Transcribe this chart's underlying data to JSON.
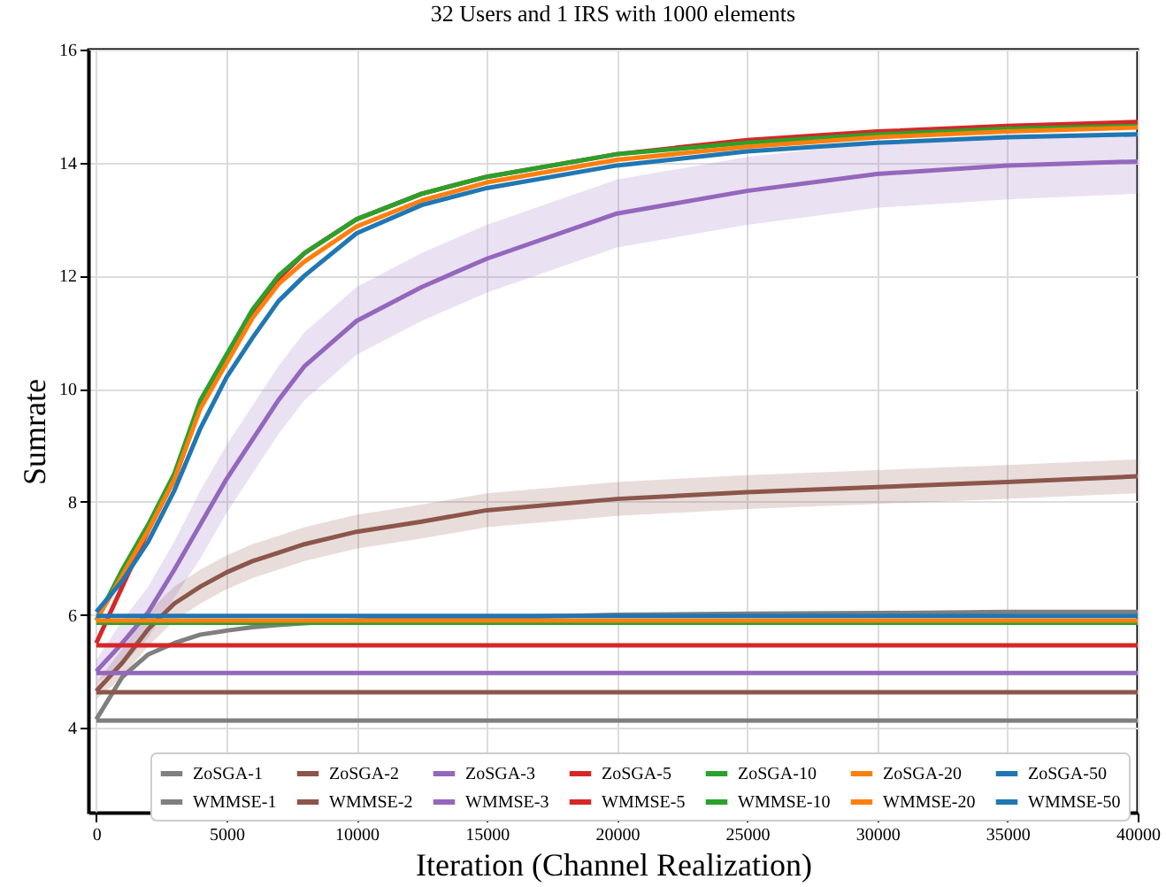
{
  "chart_data": {
    "type": "line",
    "title": "32 Users and 1 IRS with 1000 elements",
    "xlabel": "Iteration (Channel Realization)",
    "ylabel": "Sumrate",
    "x": [
      0,
      1000,
      2000,
      3000,
      4000,
      5000,
      6000,
      7000,
      8000,
      10000,
      12500,
      15000,
      20000,
      25000,
      30000,
      35000,
      40000
    ],
    "xlim": [
      -300,
      40000
    ],
    "xticks": [
      0,
      5000,
      10000,
      15000,
      20000,
      25000,
      30000,
      35000,
      40000
    ],
    "ylim": [
      2.5,
      16
    ],
    "yticks": [
      4,
      6,
      8,
      10,
      12,
      14,
      16
    ],
    "grid": true,
    "legend": "bottom",
    "series": [
      {
        "name": "ZoSGA-1",
        "color": "#7f7f7f",
        "values": [
          4.15,
          4.9,
          5.3,
          5.5,
          5.65,
          5.72,
          5.78,
          5.82,
          5.85,
          5.9,
          5.93,
          5.95,
          6.0,
          6.02,
          6.03,
          6.05,
          6.05
        ]
      },
      {
        "name": "ZoSGA-2",
        "color": "#8c564b",
        "values": [
          4.65,
          5.15,
          5.75,
          6.2,
          6.5,
          6.75,
          6.95,
          7.1,
          7.25,
          7.47,
          7.65,
          7.85,
          8.05,
          8.17,
          8.26,
          8.35,
          8.45
        ],
        "lower": [
          4.5,
          4.9,
          5.45,
          5.9,
          6.2,
          6.45,
          6.65,
          6.8,
          6.95,
          7.17,
          7.35,
          7.55,
          7.75,
          7.87,
          7.96,
          8.05,
          8.15
        ],
        "upper": [
          4.8,
          5.4,
          6.05,
          6.5,
          6.8,
          7.05,
          7.25,
          7.4,
          7.55,
          7.77,
          7.95,
          8.15,
          8.35,
          8.47,
          8.56,
          8.65,
          8.75
        ]
      },
      {
        "name": "ZoSGA-3",
        "color": "#9467bd",
        "values": [
          5.0,
          5.5,
          6.05,
          6.8,
          7.6,
          8.4,
          9.1,
          9.8,
          10.4,
          11.2,
          11.8,
          12.3,
          13.1,
          13.5,
          13.8,
          13.95,
          14.02
        ],
        "lower": [
          4.8,
          5.1,
          5.6,
          6.3,
          7.0,
          7.8,
          8.5,
          9.2,
          9.8,
          10.6,
          11.2,
          11.7,
          12.5,
          12.9,
          13.2,
          13.35,
          13.45
        ],
        "upper": [
          5.2,
          5.9,
          6.5,
          7.3,
          8.2,
          9.0,
          9.7,
          10.4,
          11.0,
          11.8,
          12.4,
          12.9,
          13.7,
          14.1,
          14.35,
          14.5,
          14.55
        ]
      },
      {
        "name": "ZoSGA-5",
        "color": "#d62728",
        "values": [
          5.5,
          6.5,
          7.5,
          8.4,
          9.7,
          10.55,
          11.35,
          11.95,
          12.4,
          13.0,
          13.45,
          13.75,
          14.15,
          14.4,
          14.55,
          14.65,
          14.72
        ]
      },
      {
        "name": "ZoSGA-10",
        "color": "#2ca02c",
        "values": [
          5.9,
          6.8,
          7.6,
          8.5,
          9.8,
          10.6,
          11.4,
          12.0,
          12.4,
          13.0,
          13.45,
          13.75,
          14.15,
          14.35,
          14.5,
          14.6,
          14.65
        ]
      },
      {
        "name": "ZoSGA-20",
        "color": "#ff7f0e",
        "values": [
          5.9,
          6.7,
          7.5,
          8.4,
          9.65,
          10.45,
          11.25,
          11.85,
          12.25,
          12.87,
          13.33,
          13.65,
          14.05,
          14.28,
          14.45,
          14.55,
          14.62
        ]
      },
      {
        "name": "ZoSGA-50",
        "color": "#1f77b4",
        "values": [
          6.05,
          6.6,
          7.3,
          8.2,
          9.3,
          10.2,
          10.9,
          11.55,
          12.0,
          12.75,
          13.25,
          13.55,
          13.95,
          14.2,
          14.35,
          14.45,
          14.5
        ]
      },
      {
        "name": "WMMSE-1",
        "color": "#7f7f7f",
        "values": [
          4.13,
          4.13,
          4.13,
          4.13,
          4.13,
          4.13,
          4.13,
          4.13,
          4.13,
          4.13,
          4.13,
          4.13,
          4.13,
          4.13,
          4.13,
          4.13,
          4.13
        ]
      },
      {
        "name": "WMMSE-2",
        "color": "#8c564b",
        "values": [
          4.63,
          4.63,
          4.63,
          4.63,
          4.63,
          4.63,
          4.63,
          4.63,
          4.63,
          4.63,
          4.63,
          4.63,
          4.63,
          4.63,
          4.63,
          4.63,
          4.63
        ]
      },
      {
        "name": "WMMSE-3",
        "color": "#9467bd",
        "values": [
          4.97,
          4.97,
          4.97,
          4.97,
          4.97,
          4.97,
          4.97,
          4.97,
          4.97,
          4.97,
          4.97,
          4.97,
          4.97,
          4.97,
          4.97,
          4.97,
          4.97
        ]
      },
      {
        "name": "WMMSE-5",
        "color": "#d62728",
        "values": [
          5.46,
          5.46,
          5.46,
          5.46,
          5.46,
          5.46,
          5.46,
          5.46,
          5.46,
          5.46,
          5.46,
          5.46,
          5.46,
          5.46,
          5.46,
          5.46,
          5.46
        ]
      },
      {
        "name": "WMMSE-10",
        "color": "#2ca02c",
        "values": [
          5.86,
          5.86,
          5.86,
          5.86,
          5.86,
          5.86,
          5.86,
          5.86,
          5.86,
          5.86,
          5.86,
          5.86,
          5.86,
          5.86,
          5.86,
          5.86,
          5.86
        ]
      },
      {
        "name": "WMMSE-20",
        "color": "#ff7f0e",
        "values": [
          5.9,
          5.9,
          5.9,
          5.9,
          5.9,
          5.9,
          5.9,
          5.9,
          5.9,
          5.9,
          5.9,
          5.9,
          5.9,
          5.9,
          5.9,
          5.9,
          5.9
        ]
      },
      {
        "name": "WMMSE-50",
        "color": "#1f77b4",
        "values": [
          5.98,
          5.98,
          5.98,
          5.98,
          5.98,
          5.98,
          5.98,
          5.98,
          5.98,
          5.98,
          5.98,
          5.98,
          5.98,
          5.98,
          5.98,
          5.98,
          5.98
        ]
      }
    ]
  }
}
